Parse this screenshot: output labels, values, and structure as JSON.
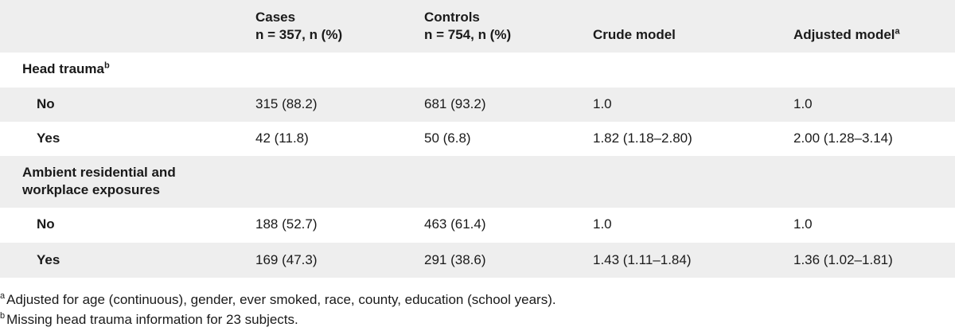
{
  "header": {
    "col0": "",
    "cases_title": "Cases",
    "cases_sub": "n = 357, n (%)",
    "controls_title": "Controls",
    "controls_sub": "n = 754, n (%)",
    "crude": "Crude model",
    "adjusted": "Adjusted model",
    "adjusted_sup": "a"
  },
  "sections": [
    {
      "label": "Head trauma",
      "sup": "b",
      "rows": [
        {
          "label": "No",
          "cases": "315 (88.2)",
          "controls": "681 (93.2)",
          "crude": "1.0",
          "adjusted": "1.0"
        },
        {
          "label": "Yes",
          "cases": "42 (11.8)",
          "controls": "50 (6.8)",
          "crude": "1.82 (1.18–2.80)",
          "adjusted": "2.00 (1.28–3.14)"
        }
      ]
    },
    {
      "label_line1": "Ambient residential and",
      "label_line2": "workplace exposures",
      "rows": [
        {
          "label": "No",
          "cases": "188 (52.7)",
          "controls": "463 (61.4)",
          "crude": "1.0",
          "adjusted": "1.0"
        },
        {
          "label": "Yes",
          "cases": "169 (47.3)",
          "controls": "291 (38.6)",
          "crude": "1.43 (1.11–1.84)",
          "adjusted": "1.36 (1.02–1.81)"
        }
      ]
    }
  ],
  "footnotes": [
    {
      "mark": "a",
      "text": "Adjusted for age (continuous), gender, ever smoked, race, county, education (school years)."
    },
    {
      "mark": "b",
      "text": "Missing head trauma information for 23 subjects."
    }
  ]
}
